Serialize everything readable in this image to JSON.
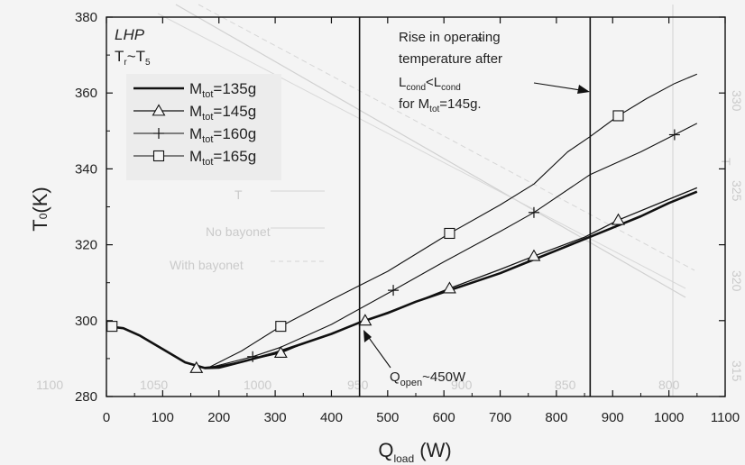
{
  "chart_data": {
    "type": "line",
    "title": "",
    "xlabel": {
      "main": "Q",
      "sub": "load",
      "unit": " (W)"
    },
    "ylabel": {
      "main": "T",
      "sub": "0",
      "unit": "(K)"
    },
    "xlim": [
      0,
      1100
    ],
    "ylim": [
      280,
      380
    ],
    "xticks": [
      0,
      100,
      200,
      300,
      400,
      500,
      600,
      700,
      800,
      900,
      1000,
      1100
    ],
    "yticks": [
      280,
      300,
      320,
      340,
      360,
      380
    ],
    "grid": false,
    "legend_position": "top-left",
    "header": {
      "line1": "LHP",
      "line2_main": "T",
      "line2_sub1": "r",
      "line2_mid": "~T",
      "line2_sub2": "5"
    },
    "series": [
      {
        "name": "M_tot=135g",
        "label_main": "M",
        "label_sub": "tot",
        "label_rest": "=135g",
        "marker": "none",
        "width": 2.6,
        "x": [
          0,
          30,
          60,
          100,
          140,
          175,
          200,
          250,
          300,
          350,
          400,
          450,
          500,
          550,
          600,
          650,
          700,
          750,
          800,
          850,
          900,
          950,
          1000,
          1050
        ],
        "y": [
          298.5,
          298.0,
          296.0,
          292.5,
          289.0,
          287.5,
          287.6,
          289.5,
          291.5,
          294.0,
          296.5,
          299.5,
          302.0,
          305.0,
          307.5,
          310.0,
          312.5,
          315.5,
          318.5,
          321.5,
          324.5,
          327.5,
          331.0,
          334.0
        ]
      },
      {
        "name": "M_tot=145g",
        "label_main": "M",
        "label_sub": "tot",
        "label_rest": "=145g",
        "marker": "triangle",
        "width": 1.3,
        "x": [
          160,
          200,
          250,
          310,
          350,
          400,
          460,
          550,
          610,
          700,
          760,
          850,
          910,
          1000,
          1050
        ],
        "y": [
          287.5,
          288.0,
          289.5,
          291.5,
          294.0,
          296.5,
          300.0,
          305.0,
          308.5,
          313.5,
          317.0,
          322.0,
          326.5,
          332.0,
          335.0
        ],
        "markers_x": [
          160,
          310,
          460,
          610,
          760,
          910
        ],
        "markers_y": [
          287.5,
          291.5,
          300.0,
          308.5,
          317.0,
          326.5
        ]
      },
      {
        "name": "M_tot=160g",
        "label_main": "M",
        "label_sub": "tot",
        "label_rest": "=160g",
        "marker": "plus",
        "width": 1.1,
        "x": [
          180,
          260,
          310,
          400,
          510,
          600,
          700,
          760,
          860,
          950,
          1010,
          1050
        ],
        "y": [
          287.5,
          290.5,
          293.0,
          299.0,
          308.0,
          315.5,
          323.5,
          328.5,
          338.5,
          344.5,
          349.0,
          352.0
        ],
        "markers_x": [
          260,
          510,
          760,
          1010
        ],
        "markers_y": [
          290.5,
          308.0,
          328.5,
          349.0
        ]
      },
      {
        "name": "M_tot=165g",
        "label_main": "M",
        "label_sub": "tot",
        "label_rest": "=165g",
        "marker": "square",
        "width": 1.1,
        "x": [
          180,
          240,
          310,
          400,
          500,
          610,
          700,
          760,
          820,
          860,
          910,
          960,
          1010,
          1050
        ],
        "y": [
          287.5,
          292.0,
          298.5,
          305.5,
          313.0,
          323.0,
          330.5,
          336.0,
          344.5,
          348.5,
          354.0,
          358.5,
          362.5,
          365.0
        ],
        "markers_x": [
          10,
          310,
          610,
          910
        ],
        "markers_y": [
          298.5,
          298.5,
          323.0,
          354.0
        ]
      }
    ],
    "vlines": [
      450,
      860
    ],
    "annotations": {
      "rise_line1": "Rise in operating",
      "rise_line2": "temperature after",
      "rise_line3_a": "L",
      "rise_line3_sub_a": "cond",
      "rise_line3_b": "<L",
      "rise_line3_sub_b": "cond",
      "rise_line3_star": "*",
      "rise_line4_a": "for M",
      "rise_line4_sub": "tot",
      "rise_line4_b": "=145g.",
      "qopen_main": "Q",
      "qopen_sub": "open",
      "qopen_rest": "~450W"
    },
    "ghost_text": {
      "top_ticks": [
        "1100",
        "1050",
        "1000",
        "950",
        "900",
        "850",
        "800"
      ],
      "right_ticks": [
        "330",
        "325",
        "320",
        "315"
      ],
      "legend_1": "No bayonet",
      "legend_2": "With bayonet",
      "legend_3": "T",
      "right_label": "T"
    }
  }
}
